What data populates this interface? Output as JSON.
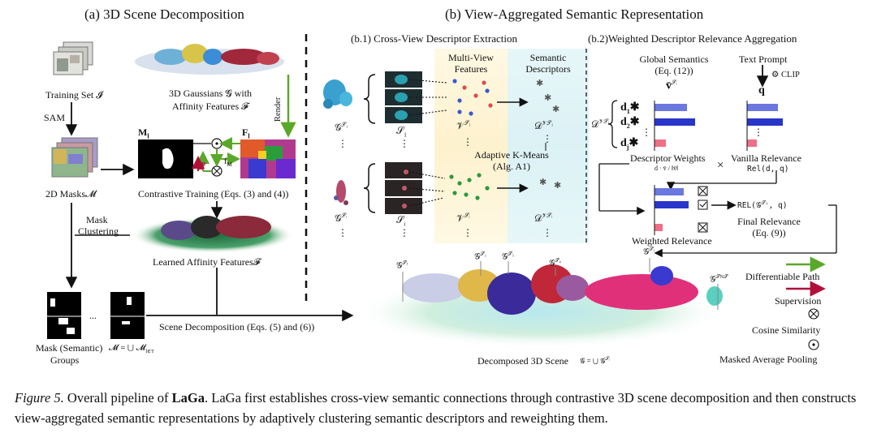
{
  "figure": {
    "section_a": {
      "title": "(a) 3D Scene Decomposition",
      "training_set": "Training Set 𝓘",
      "sam": "SAM",
      "masks": "2D Masks𝓜",
      "gaussians_line1": "3D Gaussians 𝓖 with",
      "gaussians_line2": "Affinity Features 𝓕",
      "render": "Render",
      "m_label": "M",
      "m_sub": "l",
      "f_label": "F",
      "f_sub": "l",
      "loss": "𝓛",
      "f_m": "f",
      "f_m_sub": "M",
      "contrastive": "Contrastive Training (Eqs. (3) and (4))",
      "mask_clustering_1": "Mask",
      "mask_clustering_2": "Clustering",
      "learned_affinity": "Learned Affinity Features𝓕",
      "groups_1": "Mask (Semantic)",
      "groups_2": "Groups",
      "groups_formula": "𝓜 = ⋃ 𝓜",
      "groups_formula_sub": "l∈T",
      "ellipsis": "...",
      "scene_decomp": "Scene Decomposition (Eqs. (5) and (6))"
    },
    "section_b": {
      "title": "(b) View-Aggregated Semantic Representation",
      "b1_title": "(b.1) Cross-View Descriptor Extraction",
      "b2_title": "(b.2)Weighted Descriptor Relevance Aggregation",
      "multi_view_1": "Multi-View",
      "multi_view_2": "Features",
      "semantic_desc_1": "Semantic",
      "semantic_desc_2": "Descriptors",
      "g_s1": "𝒢",
      "g_s1_sup": "𝒮₁",
      "s1": "𝒮",
      "s1_sub": "1",
      "v_s1": "𝒱",
      "v_s1_sup": "𝒮₁",
      "d_s1": "𝒟",
      "d_s1_sup": "𝒱𝒮₁",
      "g_si": "𝒢",
      "g_si_sup": "𝒮ᵢ",
      "si": "𝒮",
      "si_sub": "i",
      "v_si": "𝒱",
      "v_si_sup": "𝒮ᵢ",
      "d_si": "𝒟",
      "d_si_sup": "𝒱𝒮ᵢ",
      "vdots": "⋮",
      "kmeans_1": "Adaptive K-Means",
      "kmeans_2": "(Alg. A1)",
      "global_sem_1": "Global Semantics",
      "global_sem_2": "(Eq. (12))",
      "v_bar": "v̄",
      "v_bar_sup": "𝒮ᵢ",
      "text_prompt": "Text Prompt",
      "clip": "CLIP",
      "q": "q",
      "d_vsi": "𝒟",
      "d_vsi_sup": "𝒱𝒮ᵢ",
      "d1": "d",
      "d1_sub": "1",
      "d2": "d",
      "d2_sub": "2",
      "dj": "d",
      "dj_sub": "j",
      "desc_weights": "Descriptor Weights",
      "desc_weights_formula": "d · v̄ / ‖v̄‖",
      "times": "×",
      "vanilla_rel": "Vanilla Relevance",
      "vanilla_formula": "Rel(d, q)",
      "rel_out": "REL(𝒢",
      "rel_out_sup": "𝒮ᵢ",
      "rel_out_end": ", q)",
      "final_rel_1": "Final Relevance",
      "final_rel_2": "(Eq. (9))",
      "weighted_rel": "Weighted Relevance",
      "decomposed": "Decomposed 3D Scene",
      "decomposed_formula": "𝒢 = ⋃ 𝒢",
      "decomposed_formula_sup": "𝒮ᵢ",
      "scene_g_sj": "𝒢",
      "scene_g_sj_sup": "𝒮ⱼ",
      "scene_g_s2": "𝒢",
      "scene_g_s2_sup": "𝒮₂",
      "scene_g_s3": "𝒢",
      "scene_g_s3_sup": "𝒮₃",
      "scene_g_s4": "𝒢",
      "scene_g_s4_sup": "𝒮₄",
      "scene_g_s1": "𝒢",
      "scene_g_s1_sup": "𝒮₁",
      "scene_g_sn": "𝒢",
      "scene_g_sn_sup": "𝒮N𝒮",
      "legend_diff": "Differentiable Path",
      "legend_sup": "Supervision",
      "legend_cos": "Cosine Similarity",
      "legend_pool": "Masked Average Pooling"
    },
    "colors": {
      "green": "#5aa829",
      "red": "#b0103a",
      "blue_bar": "#6b78e0",
      "dark_blue_bar": "#2a35c9",
      "pink_bar": "#ef6f85",
      "yellow_band": "#fdf3d0",
      "cyan_band": "#dff3f6"
    }
  },
  "caption": {
    "label": "Figure 5.",
    "text_pre": " Overall pipeline of ",
    "laga": "LaGa",
    "text_post": ". LaGa first establishes cross-view semantic connections through contrastive 3D scene decomposition and then constructs view-aggregated semantic representations by adaptively clustering semantic descriptors and reweighting them."
  }
}
